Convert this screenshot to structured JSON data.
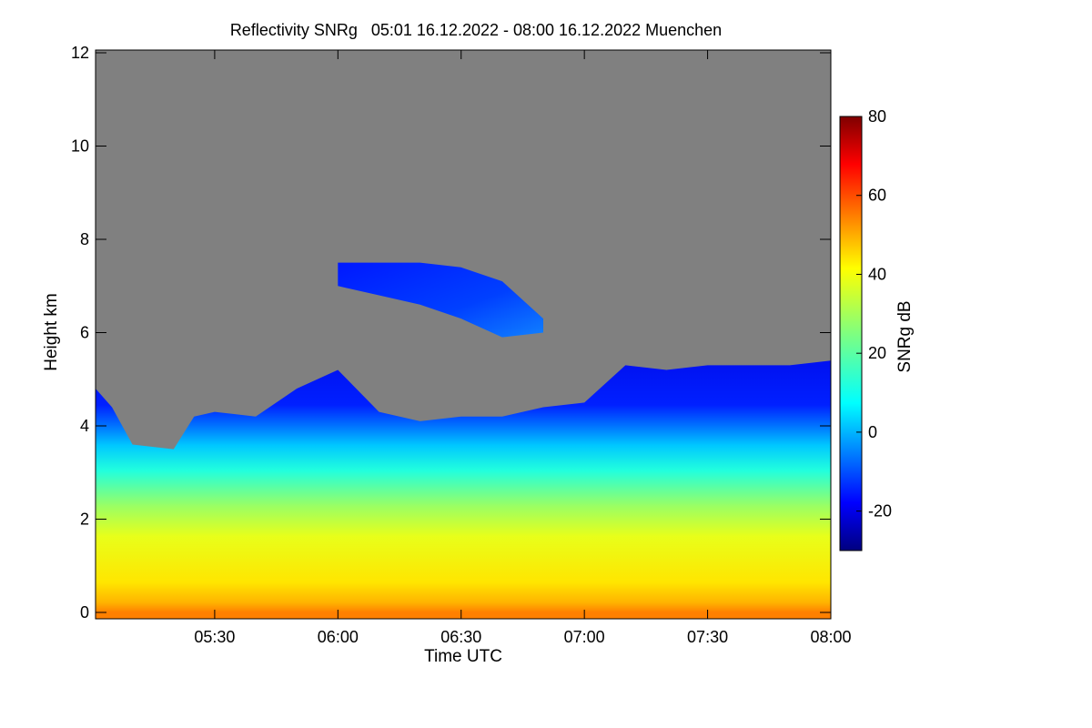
{
  "chart_data": {
    "type": "heatmap",
    "title": "Reflectivity SNRg   05:01 16.12.2022 - 08:00 16.12.2022 Muenchen",
    "xlabel": "Time UTC",
    "ylabel": "Height km",
    "colorbar_label": "SNRg dB",
    "xlim": [
      "05:01",
      "08:00"
    ],
    "ylim": [
      0,
      12
    ],
    "x_ticks": [
      "05:30",
      "06:00",
      "06:30",
      "07:00",
      "07:30",
      "08:00"
    ],
    "y_ticks": [
      0,
      2,
      4,
      6,
      8,
      10,
      12
    ],
    "colorbar_range": [
      -30,
      80
    ],
    "colorbar_ticks": [
      -20,
      0,
      20,
      40,
      60,
      80
    ],
    "colormap": "jet",
    "background_color": "#808080",
    "grid": false,
    "legend": "colorbar-right",
    "echo_top_km": [
      {
        "time": "05:01",
        "top": 4.8
      },
      {
        "time": "05:05",
        "top": 4.4
      },
      {
        "time": "05:10",
        "top": 3.6
      },
      {
        "time": "05:20",
        "top": 3.5
      },
      {
        "time": "05:25",
        "top": 4.2
      },
      {
        "time": "05:30",
        "top": 4.3
      },
      {
        "time": "05:40",
        "top": 4.2
      },
      {
        "time": "05:50",
        "top": 4.8
      },
      {
        "time": "06:00",
        "top": 5.2
      },
      {
        "time": "06:10",
        "top": 4.3
      },
      {
        "time": "06:20",
        "top": 4.1
      },
      {
        "time": "06:30",
        "top": 4.2
      },
      {
        "time": "06:40",
        "top": 4.2
      },
      {
        "time": "06:50",
        "top": 4.4
      },
      {
        "time": "07:00",
        "top": 4.5
      },
      {
        "time": "07:10",
        "top": 5.3
      },
      {
        "time": "07:20",
        "top": 5.2
      },
      {
        "time": "07:30",
        "top": 5.3
      },
      {
        "time": "07:40",
        "top": 5.3
      },
      {
        "time": "07:50",
        "top": 5.3
      },
      {
        "time": "08:00",
        "top": 5.4
      }
    ],
    "elevated_layer_km": [
      {
        "time": "06:00",
        "base": 7.0,
        "top": 7.5
      },
      {
        "time": "06:10",
        "base": 6.8,
        "top": 7.5
      },
      {
        "time": "06:20",
        "base": 6.6,
        "top": 7.5
      },
      {
        "time": "06:30",
        "base": 6.3,
        "top": 7.4
      },
      {
        "time": "06:40",
        "base": 5.9,
        "top": 7.1
      },
      {
        "time": "06:50",
        "base": 6.0,
        "top": 6.3
      }
    ]
  }
}
